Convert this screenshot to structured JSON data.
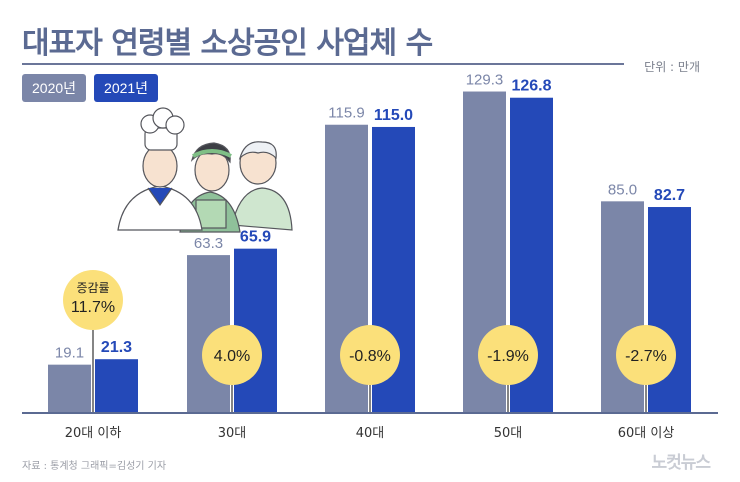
{
  "title": "대표자 연령별 소상공인 사업체 수",
  "unit": "단위 : 만개",
  "source": "자료 : 통계청     그래픽=김성기 기자",
  "logo_text": "노컷뉴스",
  "colors": {
    "y2020": "#7b86a8",
    "y2021": "#2449b8",
    "circle": "#fbe07a",
    "axis": "#5b6a92"
  },
  "change_label": "증감률",
  "chart_data": {
    "type": "bar",
    "categories": [
      "20대 이하",
      "30대",
      "40대",
      "50대",
      "60대 이상"
    ],
    "series": [
      {
        "name": "2020년",
        "values": [
          19.1,
          63.3,
          115.9,
          129.3,
          85.0
        ],
        "labels": [
          "19.1",
          "63.3",
          "115.9",
          "129.3",
          "85.0"
        ]
      },
      {
        "name": "2021년",
        "values": [
          21.3,
          65.9,
          115.0,
          126.8,
          82.7
        ],
        "labels": [
          "21.3",
          "65.9",
          "115.0",
          "126.8",
          "82.7"
        ]
      }
    ],
    "change_rates": [
      "11.7%",
      "4.0%",
      "-0.8%",
      "-1.9%",
      "-2.7%"
    ],
    "ylim": [
      0,
      140
    ],
    "legend": "top-left",
    "grid": false
  }
}
